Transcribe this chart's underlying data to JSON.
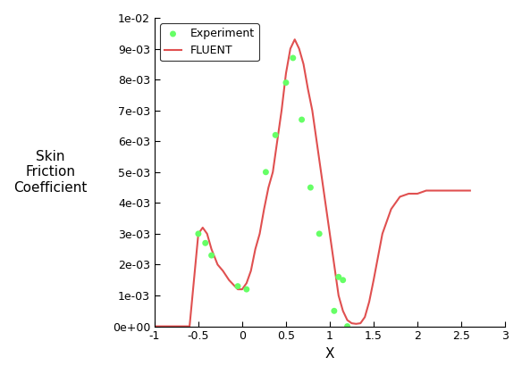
{
  "xlabel": "X",
  "ylabel": "Skin\nFriction\nCoefficient",
  "xlim": [
    -1,
    3
  ],
  "ylim": [
    0,
    0.01
  ],
  "xticks": [
    -1,
    -0.5,
    0,
    0.5,
    1,
    1.5,
    2,
    2.5,
    3
  ],
  "yticks": [
    0,
    0.001,
    0.002,
    0.003,
    0.004,
    0.005,
    0.006,
    0.007,
    0.008,
    0.009,
    0.01
  ],
  "ytick_labels": [
    "0e+00",
    "1e-03",
    "2e-03",
    "3e-03",
    "4e-03",
    "5e-03",
    "6e-03",
    "7e-03",
    "8e-03",
    "9e-03",
    "1e-02"
  ],
  "experiment_x": [
    -0.5,
    -0.42,
    -0.35,
    -0.05,
    0.05,
    0.27,
    0.38,
    0.5,
    0.58,
    0.68,
    0.78,
    0.88,
    1.05,
    1.1,
    1.15,
    1.2
  ],
  "experiment_y": [
    0.003,
    0.0027,
    0.0023,
    0.0013,
    0.0012,
    0.005,
    0.0062,
    0.0079,
    0.0087,
    0.0067,
    0.0045,
    0.003,
    0.0005,
    0.0016,
    0.0015,
    0.0
  ],
  "fluent_x": [
    -1.0,
    -0.6,
    -0.5,
    -0.45,
    -0.4,
    -0.35,
    -0.28,
    -0.22,
    -0.15,
    -0.05,
    0.0,
    0.05,
    0.1,
    0.15,
    0.2,
    0.25,
    0.3,
    0.35,
    0.4,
    0.45,
    0.5,
    0.55,
    0.6,
    0.65,
    0.7,
    0.75,
    0.8,
    0.85,
    0.9,
    0.95,
    1.0,
    1.05,
    1.1,
    1.15,
    1.2,
    1.25,
    1.3,
    1.35,
    1.4,
    1.45,
    1.5,
    1.6,
    1.7,
    1.8,
    1.9,
    2.0,
    2.1,
    2.2,
    2.3,
    2.4,
    2.5,
    2.6
  ],
  "fluent_y": [
    0.0,
    0.0,
    0.003,
    0.0032,
    0.003,
    0.0025,
    0.002,
    0.0018,
    0.0015,
    0.0012,
    0.0012,
    0.0014,
    0.0018,
    0.0025,
    0.003,
    0.0038,
    0.0045,
    0.005,
    0.006,
    0.007,
    0.0082,
    0.009,
    0.0093,
    0.009,
    0.0085,
    0.0077,
    0.007,
    0.006,
    0.005,
    0.004,
    0.003,
    0.002,
    0.001,
    0.0005,
    0.0002,
    0.0001,
    8e-05,
    0.0001,
    0.0003,
    0.0008,
    0.0015,
    0.003,
    0.0038,
    0.0042,
    0.0043,
    0.0043,
    0.0044,
    0.0044,
    0.0044,
    0.0044,
    0.0044,
    0.0044
  ],
  "experiment_color": "#66ff66",
  "experiment_marker": "o",
  "experiment_markersize": 5,
  "fluent_color": "#e05050",
  "fluent_linewidth": 1.5,
  "legend_loc": "upper left",
  "figure_bgcolor": "#ffffff",
  "axes_bgcolor": "#ffffff"
}
